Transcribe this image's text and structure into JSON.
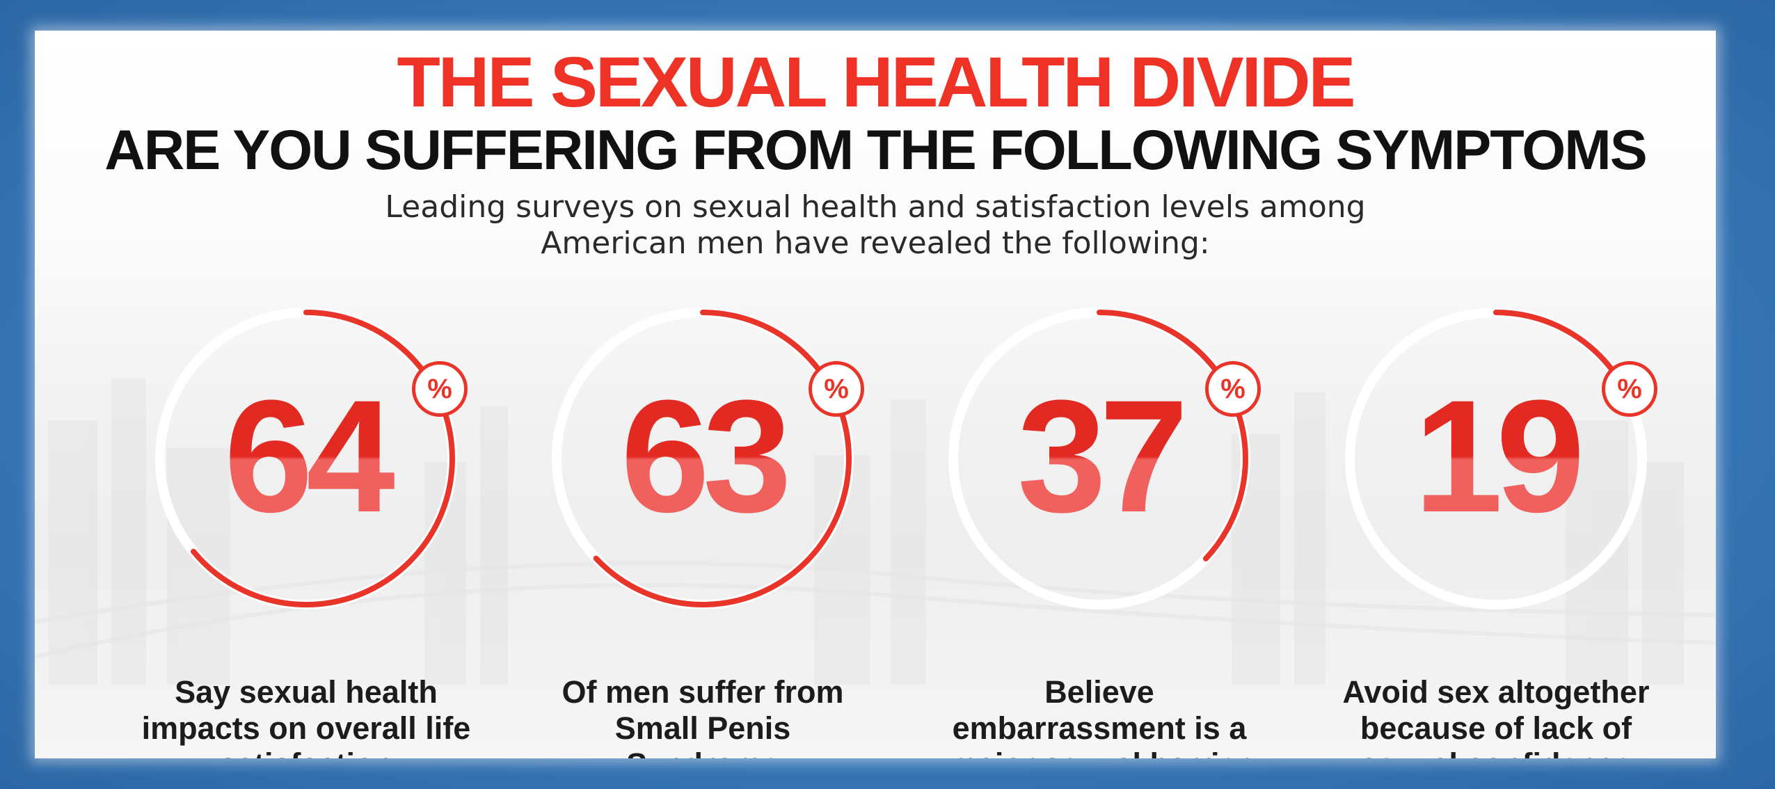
{
  "title": "THE SEXUAL HEALTH DIVIDE",
  "headline": "ARE YOU SUFFERING FROM THE FOLLOWING SYMPTOMS",
  "subtitle": {
    "line1": "Leading surveys on sexual health and satisfaction levels among",
    "line2": "American men have revealed the following:"
  },
  "colors": {
    "accent_red": "#e9342a",
    "frame_blue": "#3a78b8",
    "text_dark": "#111111"
  },
  "stats": [
    {
      "value": "64",
      "fraction": 0.64,
      "unit": "%",
      "caption": [
        "Say sexual health",
        "impacts on overall life",
        "satisfaction"
      ]
    },
    {
      "value": "63",
      "fraction": 0.63,
      "unit": "%",
      "caption": [
        "Of men suffer from",
        "Small Penis",
        "Syndrome"
      ]
    },
    {
      "value": "37",
      "fraction": 0.37,
      "unit": "%",
      "caption": [
        "Believe",
        "embarrassment is a",
        "major sexual barrier"
      ]
    },
    {
      "value": "19",
      "fraction": 0.19,
      "unit": "%",
      "caption": [
        "Avoid sex altogether",
        "because of lack of",
        "sexual confidence"
      ]
    }
  ]
}
